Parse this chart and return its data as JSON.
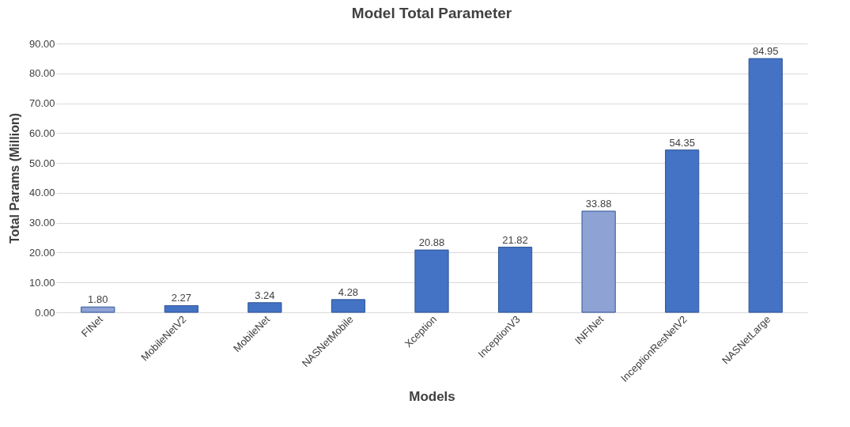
{
  "chart_data": {
    "type": "bar",
    "title": "Model Total Parameter",
    "xlabel": "Models",
    "ylabel": "Total Params (Million)",
    "categories": [
      "FINet",
      "MobileNetV2",
      "MobileNet",
      "NASNetMobile",
      "Xception",
      "InceptionV3",
      "INFINet",
      "InceptionResNetV2",
      "NASNetLarge"
    ],
    "values": [
      1.8,
      2.27,
      3.24,
      4.28,
      20.88,
      21.82,
      33.88,
      54.35,
      84.95
    ],
    "value_labels": [
      "1.80",
      "2.27",
      "3.24",
      "4.28",
      "20.88",
      "21.82",
      "33.88",
      "54.35",
      "84.95"
    ],
    "colors": [
      "#8ea2d4",
      "#4472c4",
      "#4472c4",
      "#4472c4",
      "#4472c4",
      "#4472c4",
      "#8ea2d4",
      "#4472c4",
      "#4472c4"
    ],
    "ylim": [
      0,
      90
    ],
    "yticks": [
      {
        "value": 0,
        "label": "0.00"
      },
      {
        "value": 10,
        "label": "10.00"
      },
      {
        "value": 20,
        "label": "20.00"
      },
      {
        "value": 30,
        "label": "30.00"
      },
      {
        "value": 40,
        "label": "40.00"
      },
      {
        "value": 50,
        "label": "50.00"
      },
      {
        "value": 60,
        "label": "60.00"
      },
      {
        "value": 70,
        "label": "70.00"
      },
      {
        "value": 80,
        "label": "80.00"
      },
      {
        "value": 90,
        "label": "90.00"
      }
    ],
    "grid": "y"
  }
}
